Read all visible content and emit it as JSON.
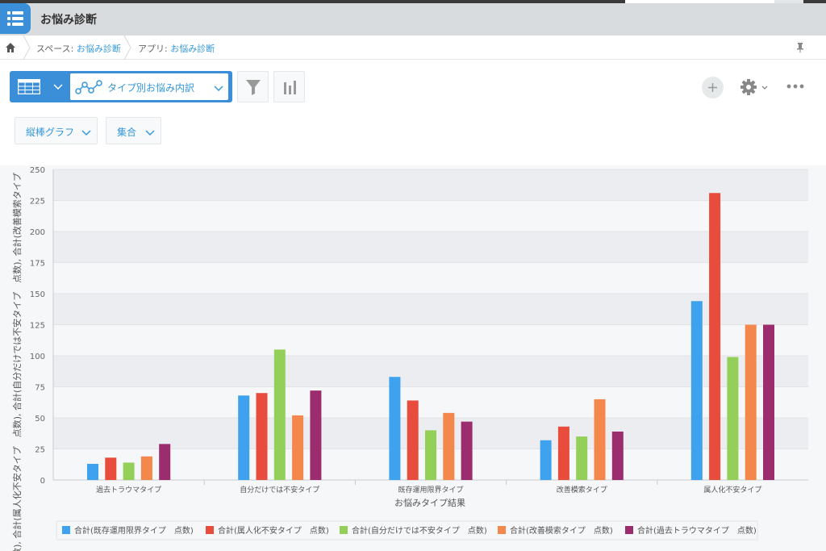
{
  "app": {
    "title": "お悩み診断",
    "icon": "app-list-icon"
  },
  "breadcrumb": {
    "space_prefix": "スペース: ",
    "space_name": "お悩み診断",
    "app_prefix": "アプリ: ",
    "app_name": "お悩み診断"
  },
  "toolbar": {
    "view_name": "タイプ別お悩み内訳",
    "chart_type": "縦棒グラフ",
    "aggregate": "集合",
    "icons": [
      "table-icon",
      "graph-icon",
      "filter-icon",
      "chart-icon",
      "plus-icon",
      "gear-icon",
      "more-icon"
    ]
  },
  "colors": {
    "accent": "#3a8fd8",
    "link": "#3498db"
  },
  "chart_data": {
    "type": "bar",
    "categories": [
      "過去トラウマタイプ",
      "自分だけでは不安タイプ",
      "既存運用限界タイプ",
      "改善模索タイプ",
      "属人化不安タイプ"
    ],
    "series": [
      {
        "name": "合計(既存運用限界タイプ　点数)",
        "color": "#3fa2ee",
        "values": [
          13,
          68,
          83,
          32,
          144
        ]
      },
      {
        "name": "合計(属人化不安タイプ　点数)",
        "color": "#e74c3c",
        "values": [
          18,
          70,
          64,
          43,
          231
        ]
      },
      {
        "name": "合計(自分だけでは不安タイプ　点数)",
        "color": "#94cf5a",
        "values": [
          14,
          105,
          40,
          35,
          99
        ]
      },
      {
        "name": "合計(改善模索タイプ　点数)",
        "color": "#f4874b",
        "values": [
          19,
          52,
          54,
          65,
          125
        ]
      },
      {
        "name": "合計(過去トラウマタイプ　点数)",
        "color": "#9b2d6e",
        "values": [
          29,
          72,
          47,
          39,
          125
        ]
      }
    ],
    "ylim": [
      0,
      250
    ],
    "yticks": [
      "0",
      "25",
      "50",
      "75",
      "100",
      "125",
      "150",
      "175",
      "200",
      "225",
      "250"
    ],
    "xlabel": "お悩みタイプ結果",
    "ylabel": "点数), 合計(属人化不安タイプ　点数), 合計(自分だけでは不安タイプ　点数), 合計(改善模索タイプ",
    "grid": true,
    "legend": "bottom"
  }
}
